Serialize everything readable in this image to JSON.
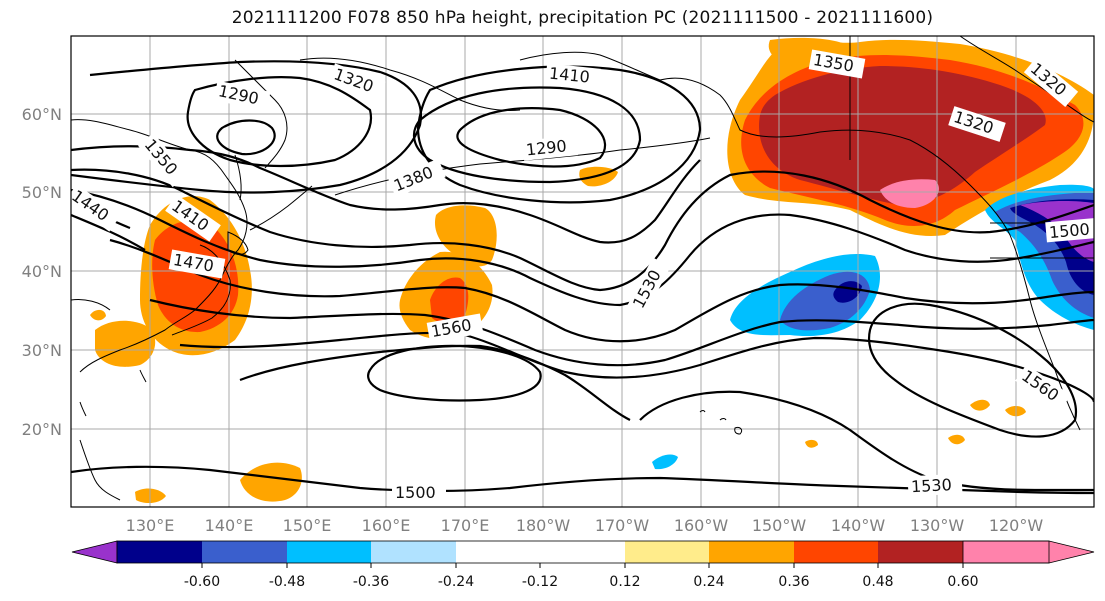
{
  "title": "2021111200 F078 850 hPa height, precipitation PC (2021111500 - 2021111600)",
  "lat_labels": [
    "60°N",
    "50°N",
    "40°N",
    "30°N",
    "20°N"
  ],
  "lon_labels": [
    "130°E",
    "140°E",
    "150°E",
    "160°E",
    "170°E",
    "180°W",
    "170°W",
    "160°W",
    "150°W",
    "140°W",
    "130°W",
    "120°W"
  ],
  "contour_labels": [
    "1290",
    "1320",
    "1410",
    "1350",
    "1320",
    "1290",
    "1320",
    "1350",
    "1380",
    "1440",
    "1410",
    "1470",
    "1560",
    "1530",
    "1500",
    "1530",
    "1560",
    "1500"
  ],
  "colorbar": {
    "colors": [
      "#9932cc",
      "#00008b",
      "#3a5fcd",
      "#00bfff",
      "#b0e2ff",
      "#ffffff",
      "#ffec8b",
      "#ffa500",
      "#ff4500",
      "#b22222",
      "#ff82ab"
    ],
    "tick_labels": [
      "-0.60",
      "-0.48",
      "-0.36",
      "-0.24",
      "-0.12",
      "0.12",
      "0.24",
      "0.36",
      "0.48",
      "0.60"
    ]
  }
}
